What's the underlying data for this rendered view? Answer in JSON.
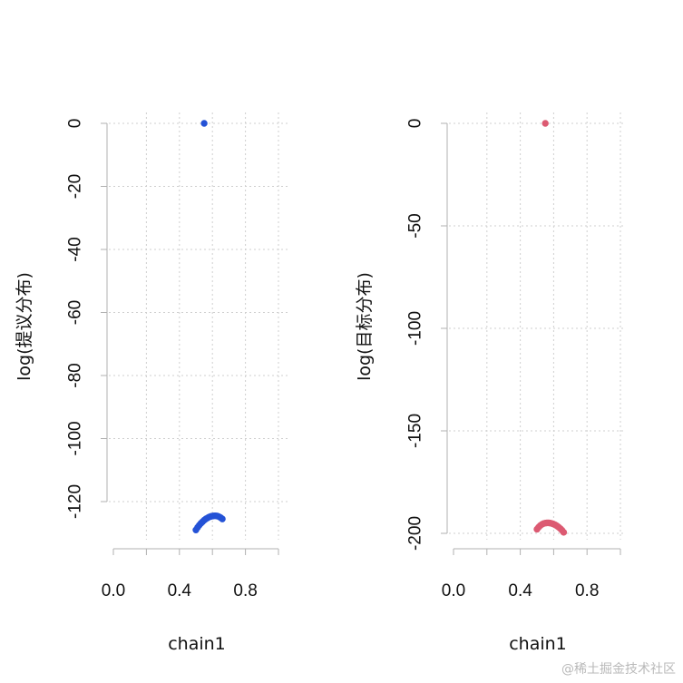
{
  "chart_data": [
    {
      "type": "scatter",
      "title": "",
      "xlabel": "chain1",
      "ylabel": "log(提议分布)",
      "xlim": [
        0.0,
        1.0
      ],
      "ylim": [
        -133,
        0
      ],
      "xticks": [
        "0.0",
        "0.4",
        "0.8"
      ],
      "xtick_values": [
        0.0,
        0.4,
        0.8
      ],
      "yticks": [
        "0",
        "-20",
        "-40",
        "-60",
        "-80",
        "-100",
        "-120"
      ],
      "ytick_values": [
        0,
        -20,
        -40,
        -60,
        -80,
        -100,
        -120
      ],
      "grid": true,
      "color": "#2452d6",
      "series": [
        {
          "points": [
            {
              "x": 0.55,
              "y": 0.0
            },
            {
              "x": 0.5,
              "y": -129.0
            },
            {
              "x": 0.51,
              "y": -128.2
            },
            {
              "x": 0.52,
              "y": -127.5
            },
            {
              "x": 0.53,
              "y": -126.9
            },
            {
              "x": 0.54,
              "y": -126.4
            },
            {
              "x": 0.55,
              "y": -125.9
            },
            {
              "x": 0.56,
              "y": -125.5
            },
            {
              "x": 0.57,
              "y": -125.2
            },
            {
              "x": 0.58,
              "y": -124.9
            },
            {
              "x": 0.59,
              "y": -124.7
            },
            {
              "x": 0.6,
              "y": -124.6
            },
            {
              "x": 0.61,
              "y": -124.5
            },
            {
              "x": 0.62,
              "y": -124.5
            },
            {
              "x": 0.63,
              "y": -124.6
            },
            {
              "x": 0.64,
              "y": -124.8
            },
            {
              "x": 0.65,
              "y": -125.1
            },
            {
              "x": 0.66,
              "y": -125.5
            }
          ]
        }
      ]
    },
    {
      "type": "scatter",
      "title": "",
      "xlabel": "chain1",
      "ylabel": "log(目标分布)",
      "xlim": [
        0.0,
        1.0
      ],
      "ylim": [
        -204,
        0
      ],
      "xticks": [
        "0.0",
        "0.4",
        "0.8"
      ],
      "xtick_values": [
        0.0,
        0.4,
        0.8
      ],
      "yticks": [
        "0",
        "-50",
        "-100",
        "-150",
        "-200"
      ],
      "ytick_values": [
        0,
        -50,
        -100,
        -150,
        -200
      ],
      "grid": true,
      "color": "#dc5a72",
      "series": [
        {
          "points": [
            {
              "x": 0.55,
              "y": 0.0
            },
            {
              "x": 0.5,
              "y": -198.0
            },
            {
              "x": 0.51,
              "y": -197.0
            },
            {
              "x": 0.52,
              "y": -196.2
            },
            {
              "x": 0.53,
              "y": -195.6
            },
            {
              "x": 0.54,
              "y": -195.2
            },
            {
              "x": 0.55,
              "y": -195.0
            },
            {
              "x": 0.56,
              "y": -194.9
            },
            {
              "x": 0.57,
              "y": -194.9
            },
            {
              "x": 0.58,
              "y": -195.0
            },
            {
              "x": 0.59,
              "y": -195.2
            },
            {
              "x": 0.6,
              "y": -195.5
            },
            {
              "x": 0.61,
              "y": -195.9
            },
            {
              "x": 0.62,
              "y": -196.4
            },
            {
              "x": 0.63,
              "y": -197.0
            },
            {
              "x": 0.64,
              "y": -197.7
            },
            {
              "x": 0.65,
              "y": -198.5
            },
            {
              "x": 0.66,
              "y": -199.5
            }
          ]
        }
      ]
    }
  ],
  "watermark": "@稀土掘金技术社区"
}
